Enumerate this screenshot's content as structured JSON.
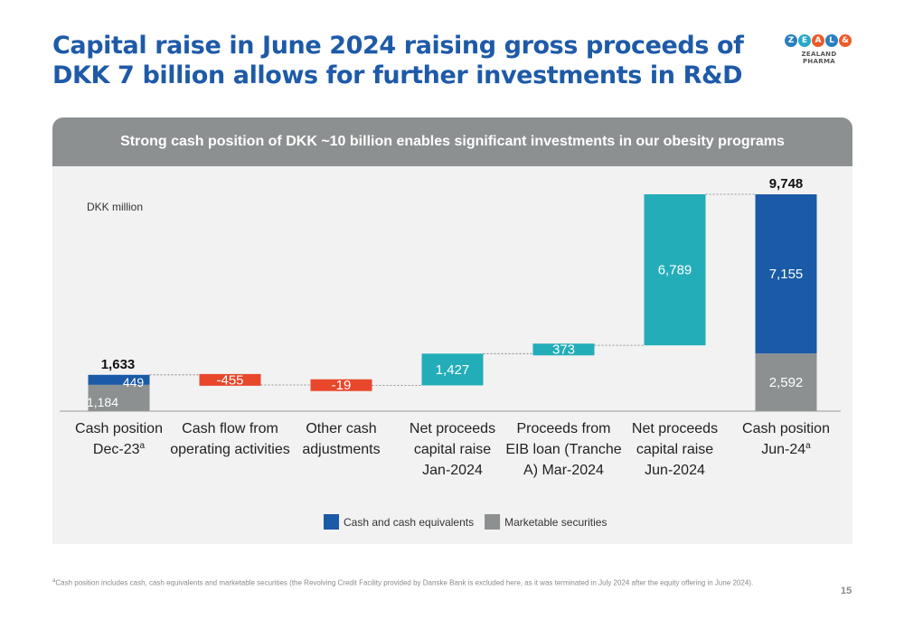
{
  "slide": {
    "title": "Capital raise in June 2024 raising gross proceeds of DKK 7 billion allows for further investments in R&D",
    "banner": "Strong cash position of DKK ~10 billion enables significant investments in our obesity programs",
    "footnote_mark": "a",
    "footnote": "Cash position includes cash, cash equivalents and marketable securities (the Revolving Credit Facility provided by Danske Bank is excluded here, as it was terminated in July 2024 after the equity offering in June 2024).",
    "page_number": "15"
  },
  "logo": {
    "letters": [
      "Z",
      "E",
      "A",
      "L",
      "&"
    ],
    "letter_colors": [
      "#2a7fc1",
      "#2aa8c9",
      "#ef5a29",
      "#2a7fc1",
      "#ef5a29"
    ],
    "subtitle": "ZEALAND PHARMA"
  },
  "colors": {
    "title": "#1e5aa8",
    "cash": "#1a5aa6",
    "securities": "#8c9091",
    "negative": "#e8472c",
    "positive": "#23adb8",
    "banner": "#8c9091",
    "panel": "#f2f2f2"
  },
  "chart_data": {
    "type": "bar",
    "subtype": "waterfall",
    "unit_label": "DKK million",
    "categories": [
      [
        "Cash position",
        "Dec-23"
      ],
      [
        "Cash flow from",
        "operating activities"
      ],
      [
        "Other cash",
        "adjustments"
      ],
      [
        "Net proceeds",
        "capital raise",
        "Jan-2024"
      ],
      [
        "Proceeds from",
        "EIB loan (Tranche",
        "A) Mar-2024"
      ],
      [
        "Net proceeds",
        "capital raise",
        "Jun-2024"
      ],
      [
        "Cash position",
        "Jun-24"
      ]
    ],
    "superscripts": [
      "a",
      "",
      "",
      "",
      "",
      "",
      "a"
    ],
    "bars": [
      {
        "kind": "total",
        "total": 1633,
        "total_label": "1,633",
        "segments": [
          {
            "series": "securities",
            "value": 1184,
            "label": "1,184"
          },
          {
            "series": "cash",
            "value": 449,
            "label": "449"
          }
        ]
      },
      {
        "kind": "negative",
        "value": -455,
        "label": "-455"
      },
      {
        "kind": "negative",
        "value": -19,
        "label": "-19"
      },
      {
        "kind": "positive",
        "value": 1427,
        "label": "1,427"
      },
      {
        "kind": "positive",
        "value": 373,
        "label": "373"
      },
      {
        "kind": "positive",
        "value": 6789,
        "label": "6,789"
      },
      {
        "kind": "total",
        "total": 9748,
        "total_label": "9,748",
        "segments": [
          {
            "series": "securities",
            "value": 2592,
            "label": "2,592"
          },
          {
            "series": "cash",
            "value": 7155,
            "label": "7,155"
          }
        ]
      }
    ],
    "legend": [
      {
        "series": "cash",
        "label": "Cash and cash equivalents"
      },
      {
        "series": "securities",
        "label": "Marketable securities"
      }
    ],
    "legend_position": "bottom-center",
    "ylim": [
      0,
      9748
    ],
    "grid": false,
    "connectors": true
  }
}
